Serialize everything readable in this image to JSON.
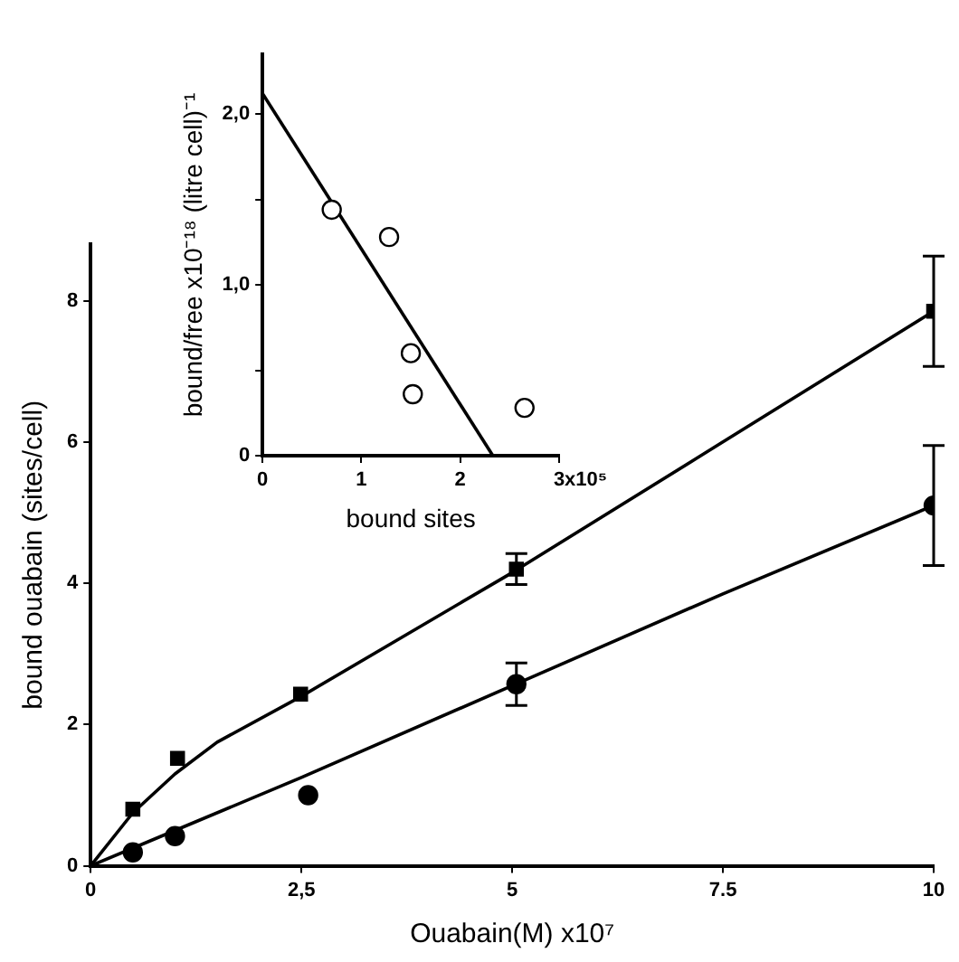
{
  "chart_data": [
    {
      "type": "scatter",
      "xlabel": "Ouabain(M) x10⁷",
      "ylabel": "bound ouabain (sites/cell)",
      "xlim": [
        0,
        10
      ],
      "ylim": [
        0,
        8.8
      ],
      "xticks": [
        0,
        {
          "value": 2.5,
          "label": "2,5"
        },
        5,
        7.5,
        10
      ],
      "yticks": [
        0,
        2,
        4,
        6,
        8
      ],
      "grid": false,
      "legend": false,
      "series": [
        {
          "marker": "square",
          "color": "#000000",
          "x": [
            0.5,
            1.03,
            2.49,
            5.05,
            10
          ],
          "values": [
            0.8,
            1.52,
            2.43,
            4.2,
            7.85
          ],
          "errors": [
            null,
            null,
            null,
            0.22,
            0.78
          ]
        },
        {
          "marker": "circle",
          "color": "#000000",
          "x": [
            0.5,
            1.0,
            2.58,
            5.05,
            10
          ],
          "values": [
            0.19,
            0.42,
            1.0,
            2.57,
            5.1
          ],
          "errors": [
            null,
            null,
            null,
            0.3,
            0.85
          ]
        },
        {
          "type": "line",
          "marker": "none",
          "color": "#000000",
          "x": [
            0,
            0.5,
            1,
            1.5,
            2.5,
            5,
            7.5,
            10
          ],
          "values": [
            0,
            0.75,
            1.3,
            1.75,
            2.4,
            4.15,
            6.0,
            7.85
          ]
        },
        {
          "type": "line",
          "marker": "none",
          "color": "#000000",
          "x": [
            0,
            1,
            2.5,
            5,
            7.5,
            10
          ],
          "values": [
            0,
            0.5,
            1.25,
            2.55,
            3.85,
            5.1
          ]
        }
      ]
    },
    {
      "type": "scatter",
      "xlabel": "bound sites",
      "ylabel": "bound/free x10⁻¹⁸ (litre cell)⁻¹",
      "xlim": [
        0,
        3
      ],
      "ylim": [
        0,
        2.35
      ],
      "xticks": [
        0,
        1,
        2,
        3
      ],
      "annotations": [
        "x10⁵"
      ],
      "yticks": [
        0,
        {
          "value": 0.5,
          "label": null
        },
        {
          "value": 1,
          "label": "1,0"
        },
        {
          "value": 1.5,
          "label": null
        },
        {
          "value": 2,
          "label": "2,0"
        }
      ],
      "grid": false,
      "legend": false,
      "series": [
        {
          "marker": "circle",
          "color": "#ffffff",
          "x": [
            0.7,
            1.28,
            1.5,
            1.52,
            2.65
          ],
          "values": [
            1.44,
            1.28,
            0.6,
            0.36,
            0.28
          ]
        },
        {
          "type": "line",
          "marker": "none",
          "color": "#000000",
          "x": [
            0,
            2.33
          ],
          "values": [
            2.12,
            0
          ]
        }
      ]
    }
  ]
}
